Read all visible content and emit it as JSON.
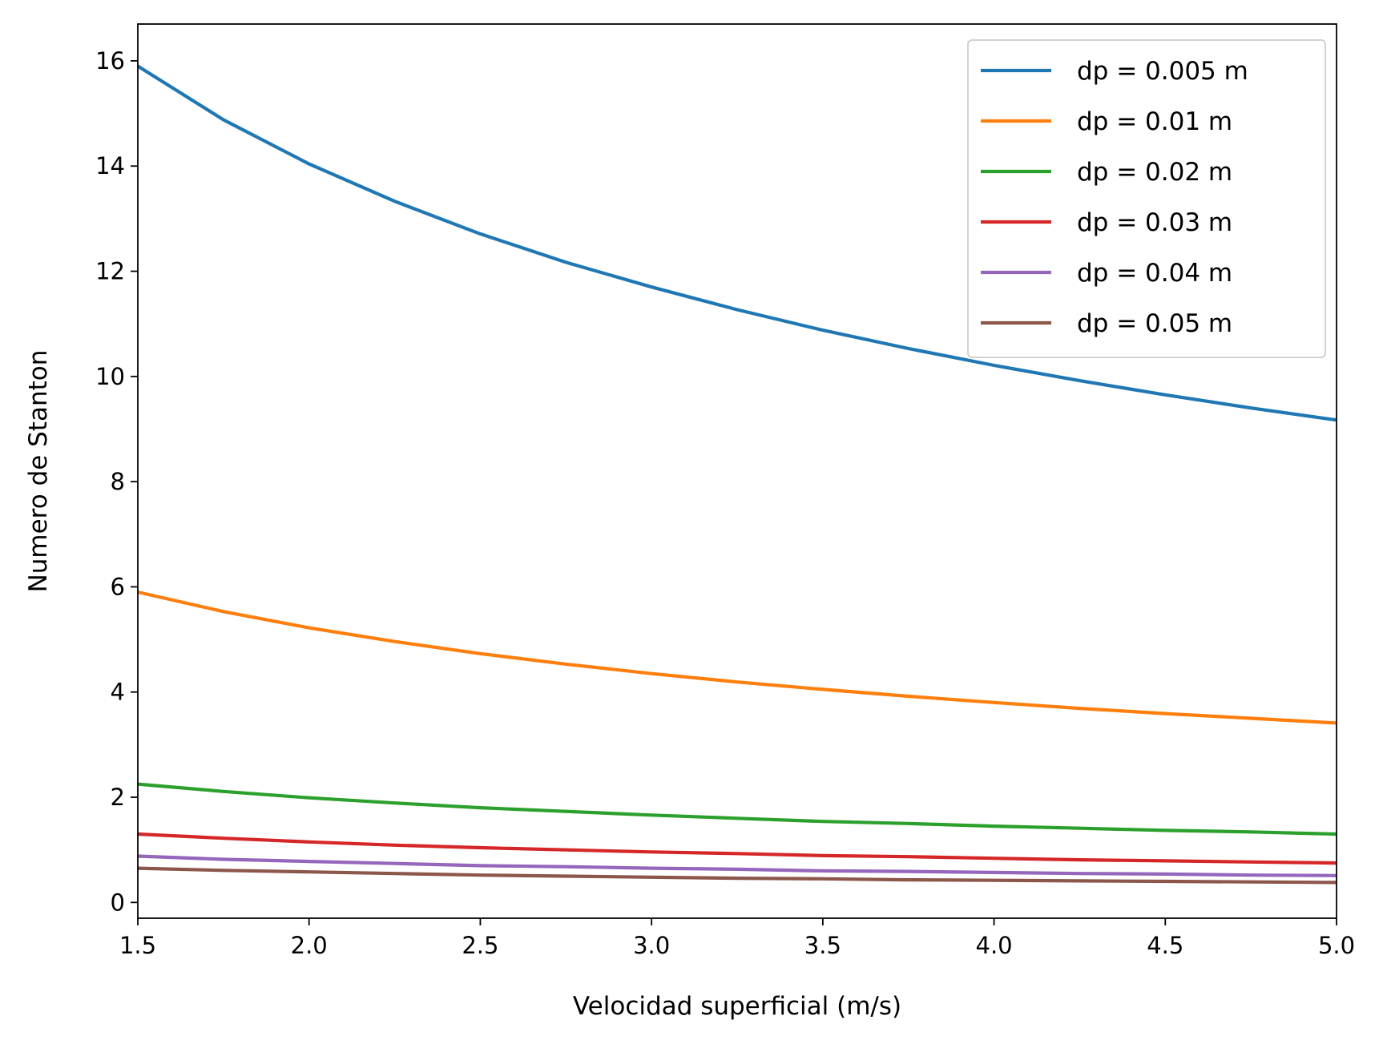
{
  "chart_data": {
    "type": "line",
    "title": "",
    "xlabel": "Velocidad superficial (m/s)",
    "ylabel": "Numero de Stanton",
    "xlim": [
      1.5,
      5.0
    ],
    "ylim": [
      -0.3,
      16.7
    ],
    "xticks": [
      1.5,
      2.0,
      2.5,
      3.0,
      3.5,
      4.0,
      4.5,
      5.0
    ],
    "xtick_labels": [
      "1.5",
      "2.0",
      "2.5",
      "3.0",
      "3.5",
      "4.0",
      "4.5",
      "5.0"
    ],
    "yticks": [
      0,
      2,
      4,
      6,
      8,
      10,
      12,
      14,
      16
    ],
    "ytick_labels": [
      "0",
      "2",
      "4",
      "6",
      "8",
      "10",
      "12",
      "14",
      "16"
    ],
    "grid": false,
    "legend_position": "top-right",
    "x": [
      1.5,
      1.75,
      2.0,
      2.25,
      2.5,
      2.75,
      3.0,
      3.25,
      3.5,
      3.75,
      4.0,
      4.25,
      4.5,
      4.75,
      5.0
    ],
    "series": [
      {
        "name": "dp = 0.005 m",
        "color": "#1f77b4",
        "values": [
          15.9,
          14.88,
          14.04,
          13.33,
          12.71,
          12.17,
          11.7,
          11.27,
          10.88,
          10.53,
          10.21,
          9.92,
          9.65,
          9.4,
          9.17
        ]
      },
      {
        "name": "dp = 0.01 m",
        "color": "#ff7f0e",
        "values": [
          5.9,
          5.53,
          5.22,
          4.96,
          4.73,
          4.53,
          4.35,
          4.19,
          4.05,
          3.92,
          3.8,
          3.69,
          3.59,
          3.5,
          3.41
        ]
      },
      {
        "name": "dp = 0.02 m",
        "color": "#2ca02c",
        "values": [
          2.25,
          2.11,
          1.99,
          1.89,
          1.8,
          1.73,
          1.66,
          1.6,
          1.54,
          1.5,
          1.45,
          1.41,
          1.37,
          1.34,
          1.3
        ]
      },
      {
        "name": "dp = 0.03 m",
        "color": "#d62728",
        "values": [
          1.3,
          1.22,
          1.15,
          1.09,
          1.04,
          1.0,
          0.96,
          0.93,
          0.89,
          0.87,
          0.84,
          0.81,
          0.79,
          0.77,
          0.75
        ]
      },
      {
        "name": "dp = 0.04 m",
        "color": "#9467bd",
        "values": [
          0.88,
          0.82,
          0.78,
          0.74,
          0.7,
          0.68,
          0.65,
          0.63,
          0.6,
          0.59,
          0.57,
          0.55,
          0.54,
          0.52,
          0.51
        ]
      },
      {
        "name": "dp = 0.05 m",
        "color": "#8c564b",
        "values": [
          0.65,
          0.61,
          0.58,
          0.55,
          0.52,
          0.5,
          0.48,
          0.46,
          0.45,
          0.43,
          0.42,
          0.41,
          0.4,
          0.39,
          0.38
        ]
      }
    ]
  }
}
